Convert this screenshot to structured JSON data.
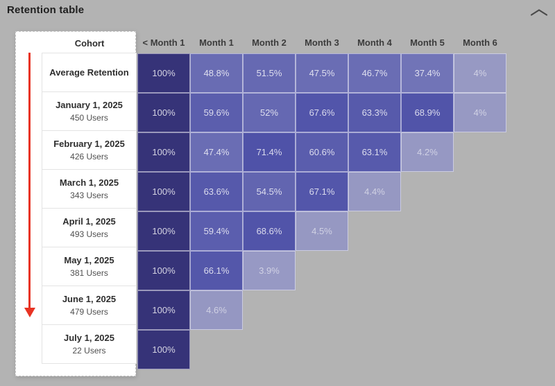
{
  "widget": {
    "title": "Retention table",
    "collapse_icon": "chevron-up"
  },
  "colors": {
    "background": "#b3b3b3",
    "panel": "#ffffff",
    "arrow": "#e83323",
    "cell_scale_stops": [
      {
        "v": 0,
        "color": "#a3a5cd"
      },
      {
        "v": 5,
        "color": "#9496c1"
      },
      {
        "v": 35,
        "color": "#7376b8"
      },
      {
        "v": 50,
        "color": "#686bb3"
      },
      {
        "v": 62,
        "color": "#585bac"
      },
      {
        "v": 72,
        "color": "#4e51a8"
      },
      {
        "v": 100,
        "color": "#363378"
      }
    ]
  },
  "chart_data": {
    "type": "heatmap",
    "title": "Retention table",
    "cohort_header": "Cohort",
    "columns": [
      "< Month 1",
      "Month 1",
      "Month 2",
      "Month 3",
      "Month 4",
      "Month 5",
      "Month 6"
    ],
    "rows": [
      {
        "label": "Average Retention",
        "sublabel": "",
        "values": [
          100,
          48.8,
          51.5,
          47.5,
          46.7,
          37.4,
          4
        ],
        "labels": [
          "100%",
          "48.8%",
          "51.5%",
          "47.5%",
          "46.7%",
          "37.4%",
          "4%"
        ]
      },
      {
        "label": "January 1, 2025",
        "sublabel": "450 Users",
        "values": [
          100,
          59.6,
          52,
          67.6,
          63.3,
          68.9,
          4
        ],
        "labels": [
          "100%",
          "59.6%",
          "52%",
          "67.6%",
          "63.3%",
          "68.9%",
          "4%"
        ]
      },
      {
        "label": "February 1, 2025",
        "sublabel": "426 Users",
        "values": [
          100,
          47.4,
          71.4,
          60.6,
          63.1,
          4.2
        ],
        "labels": [
          "100%",
          "47.4%",
          "71.4%",
          "60.6%",
          "63.1%",
          "4.2%"
        ]
      },
      {
        "label": "March 1, 2025",
        "sublabel": "343 Users",
        "values": [
          100,
          63.6,
          54.5,
          67.1,
          4.4
        ],
        "labels": [
          "100%",
          "63.6%",
          "54.5%",
          "67.1%",
          "4.4%"
        ]
      },
      {
        "label": "April 1, 2025",
        "sublabel": "493 Users",
        "values": [
          100,
          59.4,
          68.6,
          4.5
        ],
        "labels": [
          "100%",
          "59.4%",
          "68.6%",
          "4.5%"
        ]
      },
      {
        "label": "May 1, 2025",
        "sublabel": "381 Users",
        "values": [
          100,
          66.1,
          3.9
        ],
        "labels": [
          "100%",
          "66.1%",
          "3.9%"
        ]
      },
      {
        "label": "June 1, 2025",
        "sublabel": "479 Users",
        "values": [
          100,
          4.6
        ],
        "labels": [
          "100%",
          "4.6%"
        ]
      },
      {
        "label": "July 1, 2025",
        "sublabel": "22 Users",
        "values": [
          100
        ],
        "labels": [
          "100%"
        ]
      }
    ]
  }
}
